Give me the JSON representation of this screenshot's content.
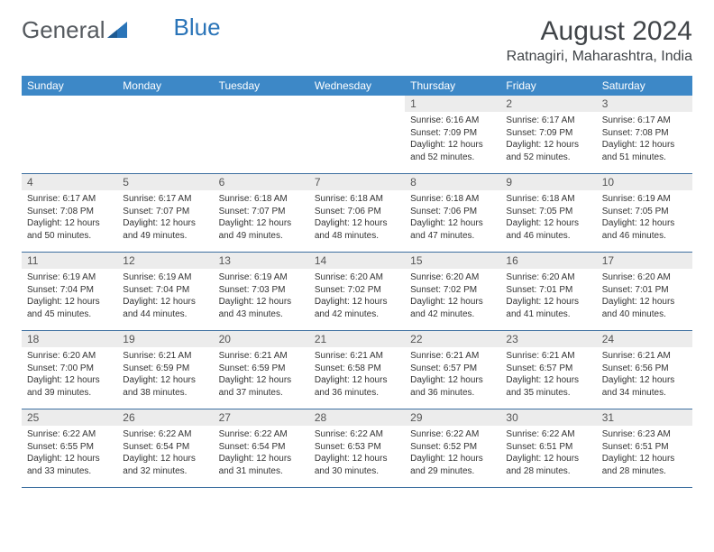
{
  "logo": {
    "text1": "General",
    "text2": "Blue"
  },
  "header": {
    "title": "August 2024",
    "location": "Ratnagiri, Maharashtra, India"
  },
  "colors": {
    "header_bar": "#3d88c7",
    "daynum_bg": "#ececec",
    "week_border": "#3d6fa0",
    "text": "#333333",
    "title_text": "#404448"
  },
  "dayNames": [
    "Sunday",
    "Monday",
    "Tuesday",
    "Wednesday",
    "Thursday",
    "Friday",
    "Saturday"
  ],
  "weeks": [
    [
      null,
      null,
      null,
      null,
      {
        "n": "1",
        "sr": "Sunrise: 6:16 AM",
        "ss": "Sunset: 7:09 PM",
        "dl": "Daylight: 12 hours and 52 minutes."
      },
      {
        "n": "2",
        "sr": "Sunrise: 6:17 AM",
        "ss": "Sunset: 7:09 PM",
        "dl": "Daylight: 12 hours and 52 minutes."
      },
      {
        "n": "3",
        "sr": "Sunrise: 6:17 AM",
        "ss": "Sunset: 7:08 PM",
        "dl": "Daylight: 12 hours and 51 minutes."
      }
    ],
    [
      {
        "n": "4",
        "sr": "Sunrise: 6:17 AM",
        "ss": "Sunset: 7:08 PM",
        "dl": "Daylight: 12 hours and 50 minutes."
      },
      {
        "n": "5",
        "sr": "Sunrise: 6:17 AM",
        "ss": "Sunset: 7:07 PM",
        "dl": "Daylight: 12 hours and 49 minutes."
      },
      {
        "n": "6",
        "sr": "Sunrise: 6:18 AM",
        "ss": "Sunset: 7:07 PM",
        "dl": "Daylight: 12 hours and 49 minutes."
      },
      {
        "n": "7",
        "sr": "Sunrise: 6:18 AM",
        "ss": "Sunset: 7:06 PM",
        "dl": "Daylight: 12 hours and 48 minutes."
      },
      {
        "n": "8",
        "sr": "Sunrise: 6:18 AM",
        "ss": "Sunset: 7:06 PM",
        "dl": "Daylight: 12 hours and 47 minutes."
      },
      {
        "n": "9",
        "sr": "Sunrise: 6:18 AM",
        "ss": "Sunset: 7:05 PM",
        "dl": "Daylight: 12 hours and 46 minutes."
      },
      {
        "n": "10",
        "sr": "Sunrise: 6:19 AM",
        "ss": "Sunset: 7:05 PM",
        "dl": "Daylight: 12 hours and 46 minutes."
      }
    ],
    [
      {
        "n": "11",
        "sr": "Sunrise: 6:19 AM",
        "ss": "Sunset: 7:04 PM",
        "dl": "Daylight: 12 hours and 45 minutes."
      },
      {
        "n": "12",
        "sr": "Sunrise: 6:19 AM",
        "ss": "Sunset: 7:04 PM",
        "dl": "Daylight: 12 hours and 44 minutes."
      },
      {
        "n": "13",
        "sr": "Sunrise: 6:19 AM",
        "ss": "Sunset: 7:03 PM",
        "dl": "Daylight: 12 hours and 43 minutes."
      },
      {
        "n": "14",
        "sr": "Sunrise: 6:20 AM",
        "ss": "Sunset: 7:02 PM",
        "dl": "Daylight: 12 hours and 42 minutes."
      },
      {
        "n": "15",
        "sr": "Sunrise: 6:20 AM",
        "ss": "Sunset: 7:02 PM",
        "dl": "Daylight: 12 hours and 42 minutes."
      },
      {
        "n": "16",
        "sr": "Sunrise: 6:20 AM",
        "ss": "Sunset: 7:01 PM",
        "dl": "Daylight: 12 hours and 41 minutes."
      },
      {
        "n": "17",
        "sr": "Sunrise: 6:20 AM",
        "ss": "Sunset: 7:01 PM",
        "dl": "Daylight: 12 hours and 40 minutes."
      }
    ],
    [
      {
        "n": "18",
        "sr": "Sunrise: 6:20 AM",
        "ss": "Sunset: 7:00 PM",
        "dl": "Daylight: 12 hours and 39 minutes."
      },
      {
        "n": "19",
        "sr": "Sunrise: 6:21 AM",
        "ss": "Sunset: 6:59 PM",
        "dl": "Daylight: 12 hours and 38 minutes."
      },
      {
        "n": "20",
        "sr": "Sunrise: 6:21 AM",
        "ss": "Sunset: 6:59 PM",
        "dl": "Daylight: 12 hours and 37 minutes."
      },
      {
        "n": "21",
        "sr": "Sunrise: 6:21 AM",
        "ss": "Sunset: 6:58 PM",
        "dl": "Daylight: 12 hours and 36 minutes."
      },
      {
        "n": "22",
        "sr": "Sunrise: 6:21 AM",
        "ss": "Sunset: 6:57 PM",
        "dl": "Daylight: 12 hours and 36 minutes."
      },
      {
        "n": "23",
        "sr": "Sunrise: 6:21 AM",
        "ss": "Sunset: 6:57 PM",
        "dl": "Daylight: 12 hours and 35 minutes."
      },
      {
        "n": "24",
        "sr": "Sunrise: 6:21 AM",
        "ss": "Sunset: 6:56 PM",
        "dl": "Daylight: 12 hours and 34 minutes."
      }
    ],
    [
      {
        "n": "25",
        "sr": "Sunrise: 6:22 AM",
        "ss": "Sunset: 6:55 PM",
        "dl": "Daylight: 12 hours and 33 minutes."
      },
      {
        "n": "26",
        "sr": "Sunrise: 6:22 AM",
        "ss": "Sunset: 6:54 PM",
        "dl": "Daylight: 12 hours and 32 minutes."
      },
      {
        "n": "27",
        "sr": "Sunrise: 6:22 AM",
        "ss": "Sunset: 6:54 PM",
        "dl": "Daylight: 12 hours and 31 minutes."
      },
      {
        "n": "28",
        "sr": "Sunrise: 6:22 AM",
        "ss": "Sunset: 6:53 PM",
        "dl": "Daylight: 12 hours and 30 minutes."
      },
      {
        "n": "29",
        "sr": "Sunrise: 6:22 AM",
        "ss": "Sunset: 6:52 PM",
        "dl": "Daylight: 12 hours and 29 minutes."
      },
      {
        "n": "30",
        "sr": "Sunrise: 6:22 AM",
        "ss": "Sunset: 6:51 PM",
        "dl": "Daylight: 12 hours and 28 minutes."
      },
      {
        "n": "31",
        "sr": "Sunrise: 6:23 AM",
        "ss": "Sunset: 6:51 PM",
        "dl": "Daylight: 12 hours and 28 minutes."
      }
    ]
  ]
}
